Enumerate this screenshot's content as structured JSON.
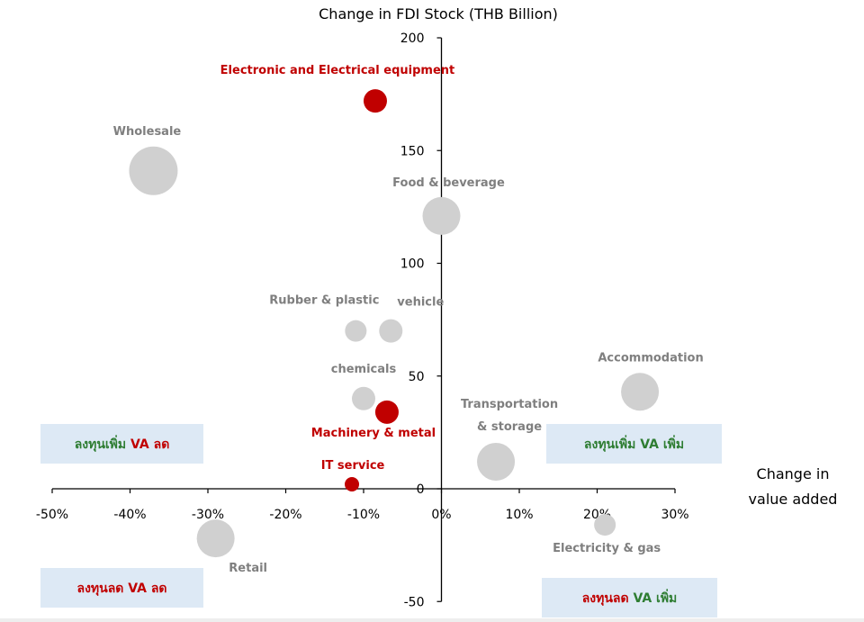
{
  "chart_data": {
    "type": "scatter",
    "y_axis_title": "Change in FDI Stock (THB Billion)",
    "x_axis_title_line1": "Change in",
    "x_axis_title_line2": "value added",
    "xlim": [
      -50,
      30
    ],
    "ylim": [
      -50,
      200
    ],
    "x_ticks": [
      -50,
      -40,
      -30,
      -20,
      -10,
      0,
      10,
      20,
      30
    ],
    "x_tick_labels": [
      "-50%",
      "-40%",
      "-30%",
      "-20%",
      "-10%",
      "0%",
      "10%",
      "20%",
      "30%"
    ],
    "y_ticks": [
      -50,
      0,
      50,
      100,
      150,
      200
    ],
    "y_tick_labels": [
      "-50",
      "0",
      "50",
      "100",
      "150",
      "200"
    ],
    "colors": {
      "highlight": "#c00000",
      "neutral": "#d0d0d0",
      "neutral_label": "#7f7f7f",
      "positive_text": "#2e7d32",
      "negative_text": "#c00000",
      "quadrant_box": "#dde9f5"
    },
    "points": [
      {
        "label": "Electronic and Electrical equipment",
        "x": -8.5,
        "y": 172,
        "size": "small",
        "highlight": true
      },
      {
        "label": "Wholesale",
        "x": -37,
        "y": 141,
        "size": "large",
        "highlight": false
      },
      {
        "label": "Food & beverage",
        "x": 0,
        "y": 121,
        "size": "medium",
        "highlight": false
      },
      {
        "label": "Rubber & plastic",
        "x": -11,
        "y": 70,
        "size": "xsmall",
        "highlight": false
      },
      {
        "label": "vehicle",
        "x": -6.5,
        "y": 70,
        "size": "small",
        "highlight": false
      },
      {
        "label": "chemicals",
        "x": -10,
        "y": 40,
        "size": "small",
        "highlight": false
      },
      {
        "label": "Machinery & metal",
        "x": -7,
        "y": 34,
        "size": "small",
        "highlight": true
      },
      {
        "label": "IT service",
        "x": -11.5,
        "y": 2,
        "size": "tiny",
        "highlight": true
      },
      {
        "label": "Transportation & storage",
        "label_line1": "Transportation",
        "label_line2": "& storage",
        "x": 7,
        "y": 12,
        "size": "medium",
        "highlight": false
      },
      {
        "label": "Accommodation",
        "x": 25.5,
        "y": 43,
        "size": "medium",
        "highlight": false
      },
      {
        "label": "Electricity & gas",
        "x": 21,
        "y": -16,
        "size": "xsmall",
        "highlight": false
      },
      {
        "label": "Retail",
        "x": -29,
        "y": -22,
        "size": "medium",
        "highlight": false
      }
    ],
    "quadrants": [
      {
        "name": "top-left",
        "part1": "ลงทุนเพิ่ม",
        "part2": " VA ลด",
        "tone1": "positive",
        "tone2": "negative"
      },
      {
        "name": "top-right",
        "part1": "ลงทุนเพิ่ม",
        "part2": " VA เพิ่ม",
        "tone1": "positive",
        "tone2": "positive"
      },
      {
        "name": "bottom-left",
        "part1": "ลงทุนลด",
        "part2": " VA ลด",
        "tone1": "negative",
        "tone2": "negative"
      },
      {
        "name": "bottom-right",
        "part1": "ลงทุนลด",
        "part2": " VA เพิ่ม",
        "tone1": "negative",
        "tone2": "positive"
      }
    ]
  }
}
